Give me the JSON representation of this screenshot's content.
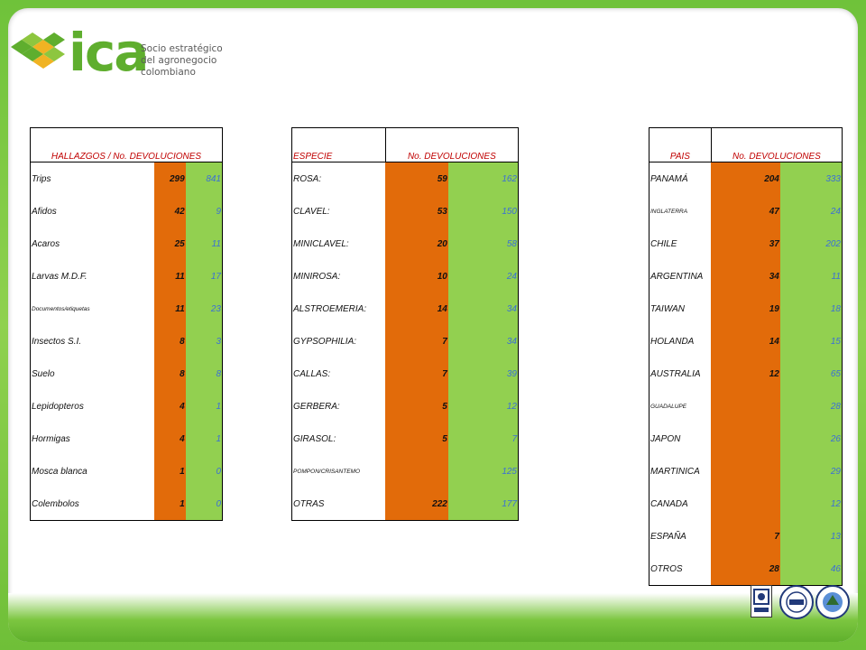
{
  "brand": {
    "logo_text": "ica",
    "tagline_line1": "Socio estratégico",
    "tagline_line2": "del agronegocio colombiano",
    "colors": {
      "green": "#5fae2e",
      "orange": "#e26b0a",
      "light_green": "#92d050",
      "header_red": "#c00000",
      "value_blue": "#3b6fd6"
    }
  },
  "hallazgos": {
    "header": "HALLAZGOS / No. DEVOLUCIONES",
    "rows": [
      {
        "name": "Trips",
        "a": "299",
        "b": "841"
      },
      {
        "name": "Afidos",
        "a": "42",
        "b": "9"
      },
      {
        "name": "Acaros",
        "a": "25",
        "b": "11"
      },
      {
        "name": "Larvas M.D.F.",
        "a": "11",
        "b": "17"
      },
      {
        "name": "Documentos/etiquetas",
        "a": "11",
        "b": "23"
      },
      {
        "name": "Insectos S.I.",
        "a": "8",
        "b": "3"
      },
      {
        "name": "Suelo",
        "a": "8",
        "b": "8"
      },
      {
        "name": "Lepidopteros",
        "a": "4",
        "b": "1"
      },
      {
        "name": "Hormigas",
        "a": "4",
        "b": "1"
      },
      {
        "name": "Mosca blanca",
        "a": "1",
        "b": "0"
      },
      {
        "name": "Colembolos",
        "a": "1",
        "b": "0"
      }
    ]
  },
  "especie": {
    "header_name": "ESPECIE",
    "header_value": "No. DEVOLUCIONES",
    "rows": [
      {
        "name": " ROSA:",
        "a": "59",
        "b": "162"
      },
      {
        "name": " CLAVEL:",
        "a": "53",
        "b": "150"
      },
      {
        "name": "MINICLAVEL:",
        "a": "20",
        "b": "58"
      },
      {
        "name": "MINIROSA:",
        "a": "10",
        "b": "24"
      },
      {
        "name": "ALSTROEMERIA:",
        "a": "14",
        "b": "34"
      },
      {
        "name": "GYPSOPHILIA:",
        "a": "7",
        "b": "34"
      },
      {
        "name": "CALLAS:",
        "a": "7",
        "b": "39"
      },
      {
        "name": "GERBERA:",
        "a": "5",
        "b": "12"
      },
      {
        "name": "GIRASOL:",
        "a": "5",
        "b": "7"
      },
      {
        "name": "POMPON/CRISANTEMO",
        "a": "",
        "b": "125"
      },
      {
        "name": "OTRAS",
        "a": "222",
        "b": "177"
      }
    ]
  },
  "pais": {
    "header_name": "PAIS",
    "header_value": "No. DEVOLUCIONES",
    "rows": [
      {
        "name": "PANAMÁ",
        "a": "204",
        "b": "333"
      },
      {
        "name": "INGLATERRA",
        "a": "47",
        "b": "24"
      },
      {
        "name": "CHILE",
        "a": "37",
        "b": "202"
      },
      {
        "name": "ARGENTINA",
        "a": "34",
        "b": "11"
      },
      {
        "name": "TAIWAN",
        "a": "19",
        "b": "18"
      },
      {
        "name": "HOLANDA",
        "a": "14",
        "b": "15"
      },
      {
        "name": "AUSTRALIA",
        "a": "12",
        "b": "65"
      },
      {
        "name": "GUADALUPE",
        "a": "",
        "b": "28"
      },
      {
        "name": "JAPON",
        "a": "",
        "b": "26"
      },
      {
        "name": "MARTINICA",
        "a": "",
        "b": "29"
      },
      {
        "name": "CANADA",
        "a": "",
        "b": "12"
      },
      {
        "name": "ESPAÑA",
        "a": "7",
        "b": "13"
      },
      {
        "name": "OTROS",
        "a": "28",
        "b": "46"
      }
    ]
  },
  "certifications": [
    "certification-seal-icon",
    "iqnet-seal-icon",
    "quality-seal-icon"
  ]
}
